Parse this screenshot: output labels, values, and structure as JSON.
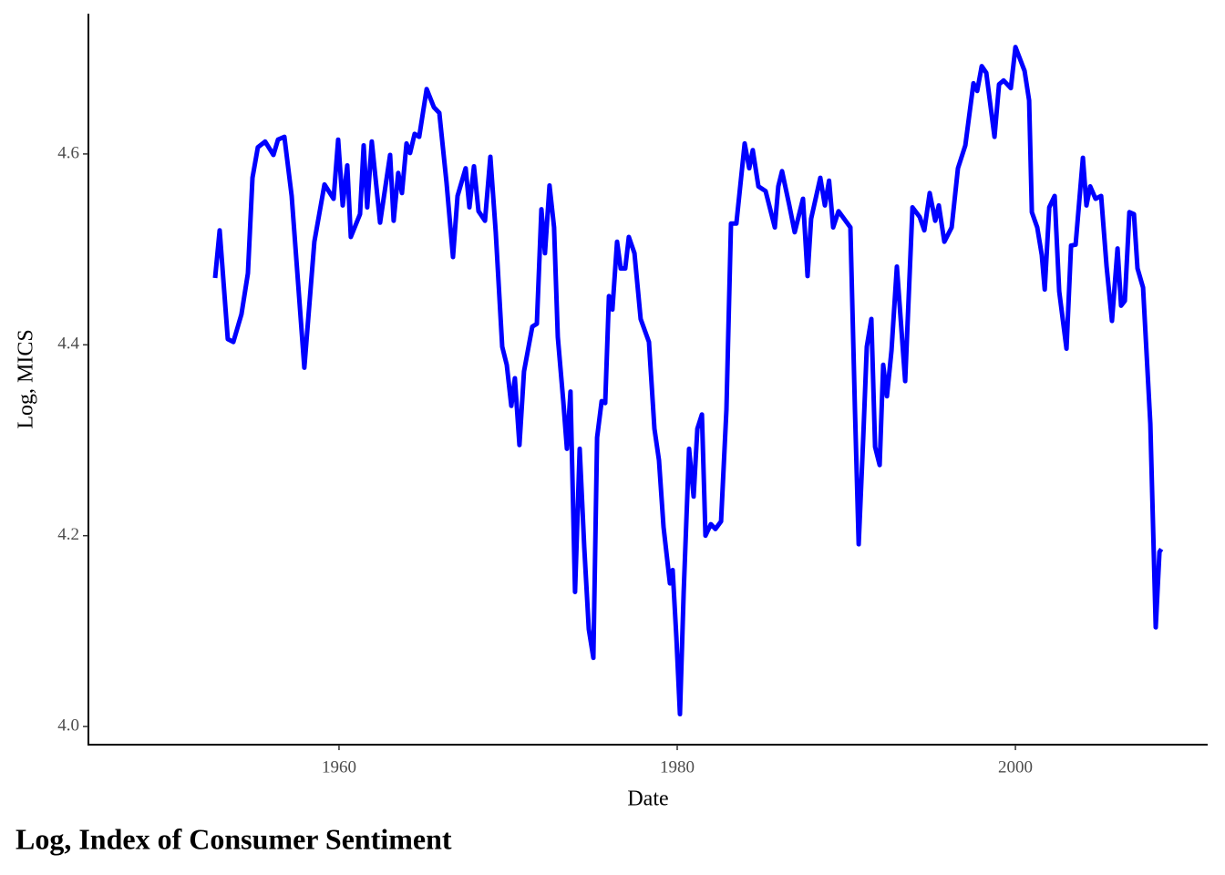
{
  "chart_data": {
    "type": "line",
    "title": "Log, Index of Consumer Sentiment",
    "x_label": "Date",
    "y_label": "Log, MICS",
    "color": "#0000ff",
    "xlim": [
      1945.18,
      2011.37
    ],
    "ylim": [
      3.981,
      4.747
    ],
    "xticks": [
      1960,
      1980,
      2000
    ],
    "yticks": [
      {
        "value": 4.0,
        "label": "4.0"
      },
      {
        "value": 4.2,
        "label": "4.2"
      },
      {
        "value": 4.4,
        "label": "4.4"
      },
      {
        "value": 4.6,
        "label": "4.6"
      }
    ],
    "x": [
      1952.67,
      1952.94,
      1953.42,
      1953.75,
      1954.23,
      1954.61,
      1954.88,
      1955.2,
      1955.63,
      1956.12,
      1956.39,
      1956.77,
      1957.2,
      1957.95,
      1958.54,
      1959.14,
      1959.68,
      1959.95,
      1960.22,
      1960.49,
      1960.7,
      1961.24,
      1961.46,
      1961.67,
      1961.94,
      1962.43,
      1963.02,
      1963.23,
      1963.5,
      1963.72,
      1963.99,
      1964.2,
      1964.47,
      1964.74,
      1965.18,
      1965.61,
      1965.93,
      1966.36,
      1966.74,
      1967.01,
      1967.49,
      1967.71,
      1967.98,
      1968.25,
      1968.63,
      1968.95,
      1969.27,
      1969.65,
      1969.92,
      1970.19,
      1970.4,
      1970.67,
      1970.94,
      1971.43,
      1971.7,
      1971.97,
      1972.18,
      1972.45,
      1972.72,
      1972.94,
      1973.26,
      1973.48,
      1973.69,
      1973.96,
      1974.23,
      1974.5,
      1974.77,
      1975.04,
      1975.26,
      1975.53,
      1975.74,
      1975.96,
      1976.17,
      1976.44,
      1976.66,
      1976.93,
      1977.14,
      1977.47,
      1977.84,
      1978.33,
      1978.65,
      1978.92,
      1979.19,
      1979.57,
      1979.73,
      1979.95,
      1980.16,
      1980.38,
      1980.7,
      1980.97,
      1981.19,
      1981.46,
      1981.67,
      1981.99,
      1982.26,
      1982.59,
      1982.91,
      1983.18,
      1983.5,
      1983.99,
      1984.26,
      1984.47,
      1984.8,
      1985.23,
      1985.77,
      1985.98,
      1986.2,
      1986.63,
      1986.95,
      1987.44,
      1987.71,
      1987.92,
      1988.46,
      1988.73,
      1988.98,
      1989.22,
      1989.54,
      1990.24,
      1990.51,
      1990.73,
      1991.0,
      1991.21,
      1991.48,
      1991.7,
      1991.97,
      1992.18,
      1992.4,
      1992.67,
      1992.99,
      1993.48,
      1993.91,
      1994.34,
      1994.61,
      1994.93,
      1995.26,
      1995.47,
      1995.8,
      1996.23,
      1996.6,
      1997.04,
      1997.52,
      1997.74,
      1998.01,
      1998.28,
      1998.76,
      1999.03,
      1999.3,
      1999.73,
      2000.0,
      2000.54,
      2000.81,
      2000.97,
      2001.29,
      2001.56,
      2001.73,
      2002.0,
      2002.32,
      2002.59,
      2003.02,
      2003.29,
      2003.56,
      2003.99,
      2004.2,
      2004.42,
      2004.74,
      2005.07,
      2005.39,
      2005.71,
      2006.04,
      2006.25,
      2006.47,
      2006.74,
      2007.01,
      2007.22,
      2007.55,
      2007.98,
      2008.3,
      2008.52,
      2008.63
    ],
    "values": [
      4.47,
      4.52,
      4.406,
      4.403,
      4.432,
      4.475,
      4.575,
      4.607,
      4.613,
      4.599,
      4.615,
      4.618,
      4.556,
      4.376,
      4.508,
      4.568,
      4.553,
      4.615,
      4.546,
      4.588,
      4.513,
      4.537,
      4.609,
      4.544,
      4.613,
      4.528,
      4.599,
      4.53,
      4.58,
      4.559,
      4.611,
      4.601,
      4.621,
      4.618,
      4.668,
      4.649,
      4.643,
      4.57,
      4.492,
      4.556,
      4.585,
      4.544,
      4.587,
      4.54,
      4.53,
      4.597,
      4.518,
      4.398,
      4.379,
      4.336,
      4.365,
      4.295,
      4.372,
      4.419,
      4.422,
      4.542,
      4.496,
      4.567,
      4.523,
      4.408,
      4.341,
      4.291,
      4.351,
      4.141,
      4.291,
      4.188,
      4.102,
      4.072,
      4.303,
      4.341,
      4.339,
      4.451,
      4.437,
      4.508,
      4.48,
      4.48,
      4.513,
      4.496,
      4.427,
      4.403,
      4.312,
      4.279,
      4.209,
      4.15,
      4.164,
      4.093,
      4.013,
      4.141,
      4.291,
      4.241,
      4.312,
      4.327,
      4.2,
      4.212,
      4.207,
      4.215,
      4.332,
      4.527,
      4.527,
      4.611,
      4.585,
      4.604,
      4.566,
      4.561,
      4.523,
      4.566,
      4.582,
      4.546,
      4.518,
      4.553,
      4.472,
      4.532,
      4.575,
      4.546,
      4.572,
      4.523,
      4.54,
      4.523,
      4.332,
      4.191,
      4.303,
      4.398,
      4.427,
      4.293,
      4.274,
      4.379,
      4.346,
      4.394,
      4.482,
      4.362,
      4.544,
      4.534,
      4.52,
      4.559,
      4.53,
      4.546,
      4.508,
      4.523,
      4.585,
      4.609,
      4.674,
      4.666,
      4.692,
      4.685,
      4.618,
      4.673,
      4.677,
      4.669,
      4.712,
      4.687,
      4.656,
      4.539,
      4.523,
      4.494,
      4.458,
      4.544,
      4.556,
      4.456,
      4.396,
      4.504,
      4.505,
      4.596,
      4.546,
      4.566,
      4.553,
      4.556,
      4.482,
      4.425,
      4.501,
      4.441,
      4.446,
      4.539,
      4.537,
      4.48,
      4.46,
      4.317,
      4.104,
      4.183,
      4.186
    ]
  }
}
